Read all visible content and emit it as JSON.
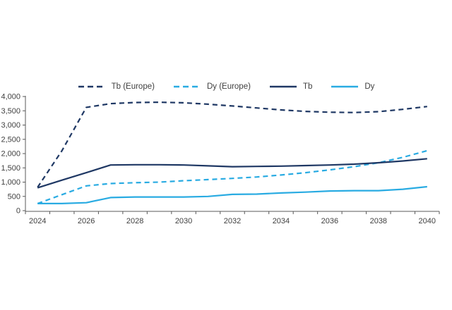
{
  "background_color": "#ffffff",
  "chart_data": {
    "type": "line",
    "title": "",
    "xlabel": "",
    "ylabel": "",
    "x": [
      2024,
      2025,
      2026,
      2027,
      2028,
      2029,
      2030,
      2031,
      2032,
      2033,
      2034,
      2035,
      2036,
      2037,
      2038,
      2039,
      2040
    ],
    "x_tick_labels": [
      "2024",
      "2026",
      "2028",
      "2030",
      "2032",
      "2034",
      "2036",
      "2038",
      "2040"
    ],
    "ylim": [
      0,
      4000
    ],
    "y_tick_step": 500,
    "y_tick_labels": [
      "0",
      "500",
      "1,000",
      "1,500",
      "2,000",
      "2,500",
      "3,000",
      "3,500",
      "4,000"
    ],
    "grid": false,
    "legend_position": "top-center",
    "axis_color": "#595959",
    "text_color": "#404040",
    "series": [
      {
        "name": "Tb (Europe)",
        "color": "#1F3864",
        "dash": true,
        "values": [
          820,
          2100,
          3620,
          3750,
          3790,
          3800,
          3780,
          3730,
          3670,
          3600,
          3530,
          3480,
          3450,
          3440,
          3470,
          3550,
          3650
        ]
      },
      {
        "name": "Dy (Europe)",
        "color": "#29ABE2",
        "dash": true,
        "values": [
          250,
          560,
          870,
          950,
          980,
          1000,
          1050,
          1090,
          1130,
          1180,
          1250,
          1330,
          1430,
          1540,
          1680,
          1870,
          2100
        ]
      },
      {
        "name": "Tb",
        "color": "#1F3864",
        "dash": false,
        "values": [
          800,
          1070,
          1330,
          1600,
          1610,
          1610,
          1600,
          1570,
          1540,
          1550,
          1560,
          1580,
          1600,
          1630,
          1680,
          1740,
          1820
        ]
      },
      {
        "name": "Dy",
        "color": "#29ABE2",
        "dash": false,
        "values": [
          250,
          250,
          280,
          460,
          480,
          480,
          480,
          500,
          570,
          580,
          620,
          650,
          690,
          700,
          700,
          750,
          840
        ]
      }
    ]
  }
}
